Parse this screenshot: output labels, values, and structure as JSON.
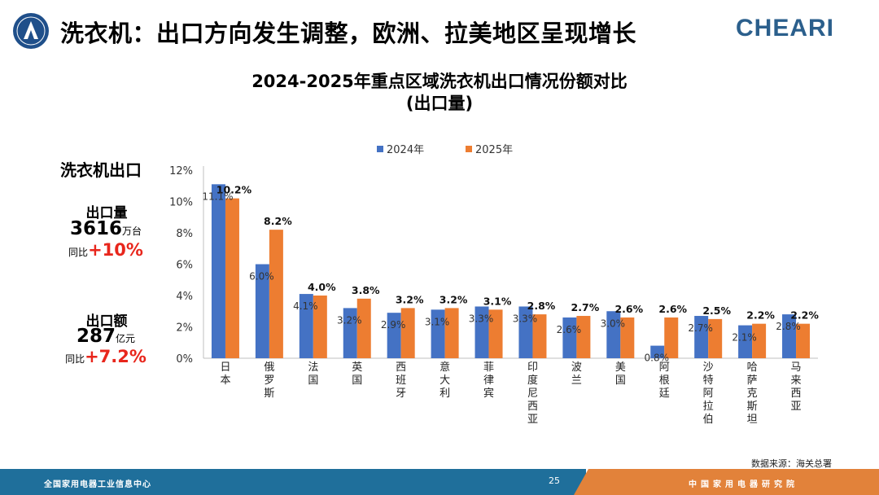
{
  "header": {
    "title": "洗衣机：出口方向发生调整，欧洲、拉美地区呈现增长",
    "brand": "CHEARI"
  },
  "side": {
    "title": "洗衣机出口",
    "volume": {
      "label": "出口量",
      "value": "3616",
      "unit": "万台",
      "yoy_label": "同比",
      "yoy_value": "+10%"
    },
    "amount": {
      "label": "出口额",
      "value": "287",
      "unit": "亿元",
      "yoy_label": "同比",
      "yoy_value": "+7.2%"
    }
  },
  "chart_data": {
    "type": "bar",
    "title": "2024-2025年重点区域洗衣机出口情况份额对比",
    "subtitle": "(出口量)",
    "categories": [
      "日本",
      "俄罗斯",
      "法国",
      "英国",
      "西班牙",
      "意大利",
      "菲律宾",
      "印度尼西亚",
      "波兰",
      "美国",
      "阿根廷",
      "沙特阿拉伯",
      "哈萨克斯坦",
      "马来西亚"
    ],
    "series": [
      {
        "name": "2024年",
        "color": "#4472c4",
        "values": [
          11.1,
          6.0,
          4.1,
          3.2,
          2.9,
          3.1,
          3.3,
          3.3,
          2.6,
          3.0,
          0.8,
          2.7,
          2.1,
          2.8
        ],
        "labels": [
          "11.1%",
          "6.0%",
          "4.1%",
          "3.2%",
          "2.9%",
          "3.1%",
          "3.3%",
          "3.3%",
          "2.6%",
          "3.0%",
          "0.8%",
          "2.7%",
          "2.1%",
          "2.8%"
        ]
      },
      {
        "name": "2025年",
        "color": "#ed7d31",
        "values": [
          10.2,
          8.2,
          4.0,
          3.8,
          3.2,
          3.2,
          3.1,
          2.8,
          2.7,
          2.6,
          2.6,
          2.5,
          2.2,
          2.2
        ],
        "labels": [
          "10.2%",
          "8.2%",
          "4.0%",
          "3.8%",
          "3.2%",
          "3.2%",
          "3.1%",
          "2.8%",
          "2.7%",
          "2.6%",
          "2.6%",
          "2.5%",
          "2.2%",
          "2.2%"
        ]
      }
    ],
    "yticks": [
      "0%",
      "2%",
      "4%",
      "6%",
      "8%",
      "10%",
      "12%"
    ],
    "ylim": [
      0,
      12
    ],
    "legend": "top-center",
    "grid": false
  },
  "source": "数据来源：海关总署",
  "footer": {
    "left_text": "全国家用电器工业信息中心",
    "page": "25",
    "right_text": "中国家用电器研究院"
  }
}
